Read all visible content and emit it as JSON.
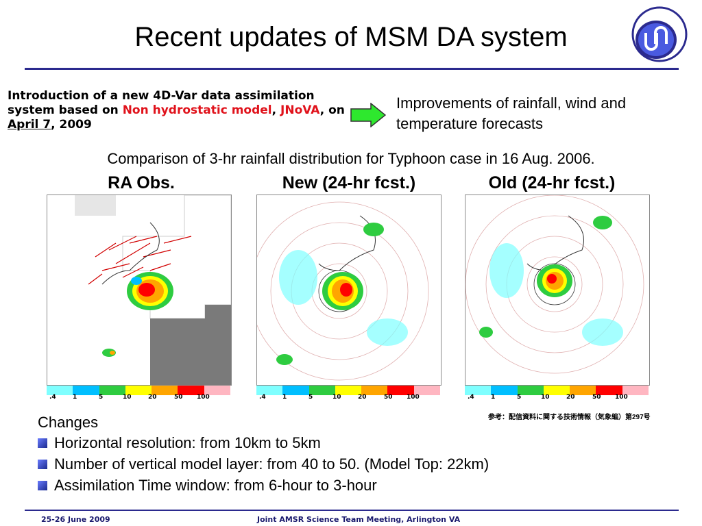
{
  "title": "Recent updates of MSM DA system",
  "intro": {
    "part1": "Introduction of a new 4D-Var data assimilation system based on ",
    "part2_red": "Non hydrostatic model",
    "part3": ", ",
    "part4_red": "JNoVA",
    "part5": ", on ",
    "part6_underline": "April 7",
    "part7": ", 2009"
  },
  "improvements": "Improvements of rainfall, wind and temperature forecasts",
  "comparison": "Comparison of 3-hr rainfall distribution for Typhoon case in 16 Aug. 2006.",
  "panels": [
    {
      "label": "RA Obs.",
      "ticks": [
        ".4",
        "1",
        "5",
        "10",
        "20",
        "50",
        "100"
      ]
    },
    {
      "label": "New (24-hr fcst.)",
      "ticks": [
        ".4",
        "1",
        "5",
        "10",
        "20",
        "50",
        "100"
      ]
    },
    {
      "label": "Old (24-hr fcst.)",
      "ticks": [
        ".4",
        "1",
        "5",
        "10",
        "20",
        "50",
        "100"
      ]
    }
  ],
  "colorbar": [
    "#7fffff",
    "#00bfff",
    "#2ecc40",
    "#ffff00",
    "#ffa500",
    "#ff0000",
    "#ffb6c1"
  ],
  "reference": "参考：配信資料に関する技術情報（気象編）第297号",
  "changes": {
    "heading": "Changes",
    "items": [
      "Horizontal resolution: from 10km to 5km",
      "Number of vertical model layer: from 40 to 50. (Model Top: 22km)",
      "Assimilation Time window: from 6-hour to 3-hour"
    ]
  },
  "footer": {
    "date": "25-26 June 2009",
    "meeting": "Joint AMSR Science Team Meeting, Arlington VA"
  }
}
